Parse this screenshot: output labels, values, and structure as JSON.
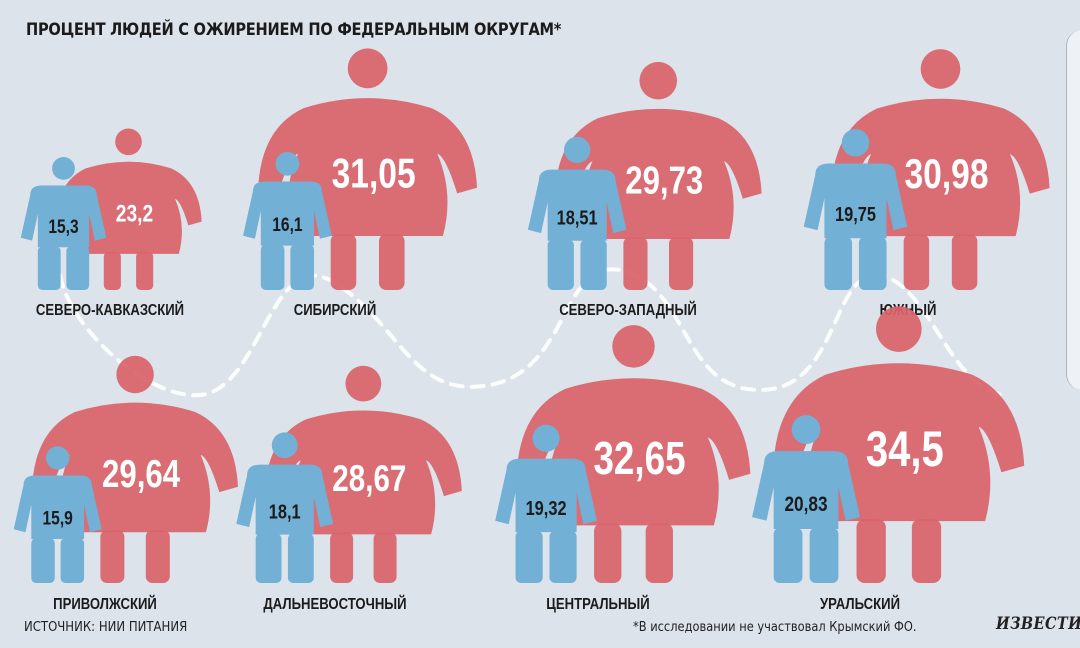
{
  "header": {
    "title": "ПРОЦЕНТ ЛЮДЕЙ С ОЖИРЕНИЕМ ПО ФЕДЕРАЛЬНЫМ ОКРУГАМ*"
  },
  "footer": {
    "source": "ИСТОЧНИК: НИИ ПИТАНИЯ",
    "footnote": "*В исследовании не участвовал Крымский ФО.",
    "brand": "ИЗВЕСТИЯ"
  },
  "colors": {
    "background": "#dce3eb",
    "male": "#72b0d6",
    "female": "#d9636b",
    "text_dark": "#1b1b1b",
    "text_light": "#ffffff",
    "path": "#ffffff"
  },
  "chart_data": {
    "type": "pictogram",
    "categories": [
      "СЕВЕРО-КАВКАЗСКИЙ",
      "СИБИРСКИЙ",
      "СЕВЕРО-ЗАПАДНЫЙ",
      "ЮЖНЫЙ",
      "ПРИВОЛЖСКИЙ",
      "ДАЛЬНЕВОСТОЧНЫЙ",
      "ЦЕНТРАЛЬНЫЙ",
      "УРАЛЬСКИЙ"
    ],
    "series": [
      {
        "color": "#72b0d6",
        "labels": [
          "15,3",
          "16,1",
          "18,51",
          "19,75",
          "15,9",
          "18,1",
          "19,32",
          "20,83"
        ],
        "values": [
          15.3,
          16.1,
          18.51,
          19.75,
          15.9,
          18.1,
          19.32,
          20.83
        ]
      },
      {
        "color": "#d9636b",
        "labels": [
          "23,2",
          "31,05",
          "29,73",
          "30,98",
          "29,64",
          "28,67",
          "32,65",
          "34,5"
        ],
        "values": [
          23.2,
          31.05,
          29.73,
          30.98,
          29.64,
          28.67,
          32.65,
          34.5
        ]
      }
    ]
  }
}
